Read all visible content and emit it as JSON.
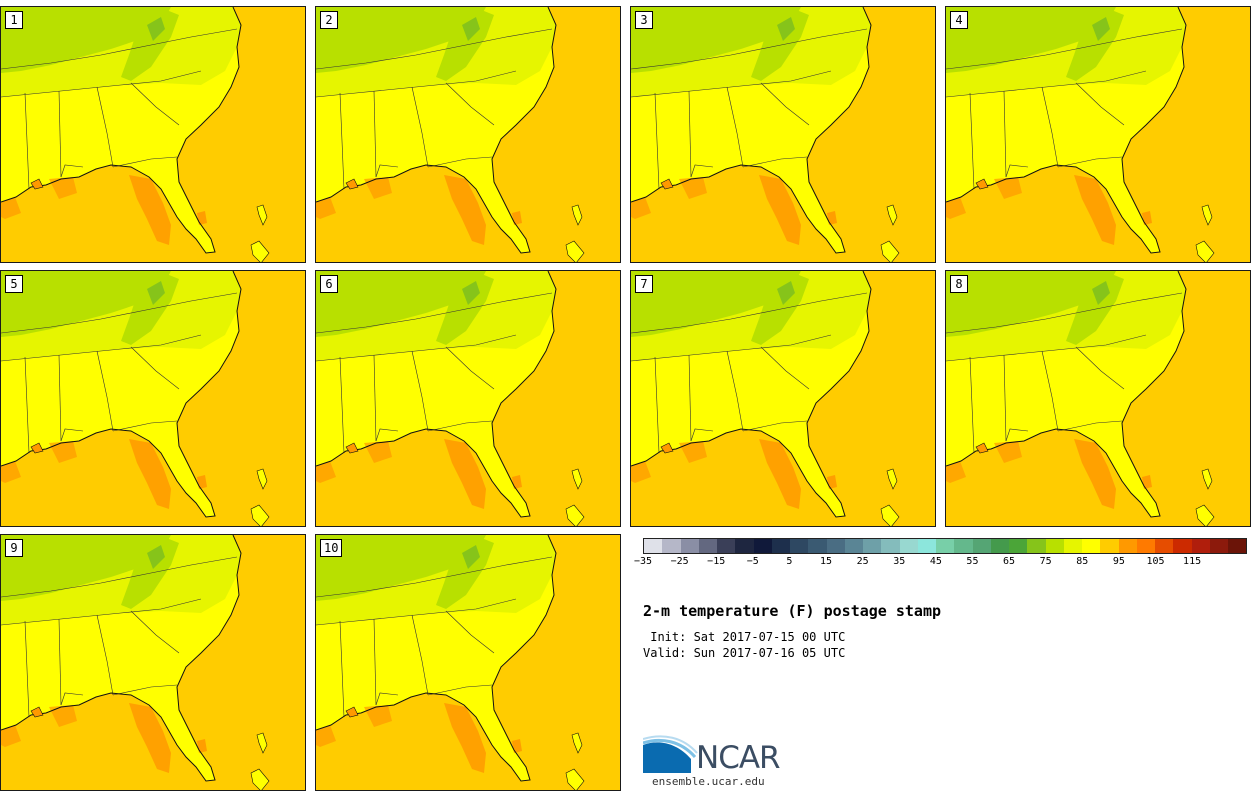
{
  "figure": {
    "title": "2-m temperature (F) postage stamp",
    "init_label": " Init: Sat 2017-07-15 00 UTC",
    "valid_label": "Valid: Sun 2017-07-16 05 UTC"
  },
  "members": [
    "1",
    "2",
    "3",
    "4",
    "5",
    "6",
    "7",
    "8",
    "9",
    "10"
  ],
  "colorbar": {
    "ticks": [
      "−35",
      "−25",
      "−15",
      "−5",
      "5",
      "15",
      "25",
      "35",
      "45",
      "55",
      "65",
      "75",
      "85",
      "95",
      "105",
      "115"
    ],
    "colors": [
      "#dfe1e9",
      "#b5b7c8",
      "#8a8ea5",
      "#636880",
      "#3a3f58",
      "#1e2640",
      "#10193a",
      "#1d2f4c",
      "#2e4862",
      "#3a5a72",
      "#4a6d83",
      "#5a8595",
      "#6ea0a8",
      "#84bcbc",
      "#98d8d0",
      "#8ce6dc",
      "#78cfa8",
      "#64b88c",
      "#55a574",
      "#449a4c",
      "#4ba538",
      "#86c41a",
      "#b8e000",
      "#e6f500",
      "#ffff00",
      "#ffcc00",
      "#ff9900",
      "#ff7a00",
      "#e64d00",
      "#cc2a00",
      "#b01e0c",
      "#8c1a0c",
      "#6b1408"
    ]
  },
  "logo": {
    "name": "NCAR",
    "url": "ensemble.ucar.edu"
  }
}
